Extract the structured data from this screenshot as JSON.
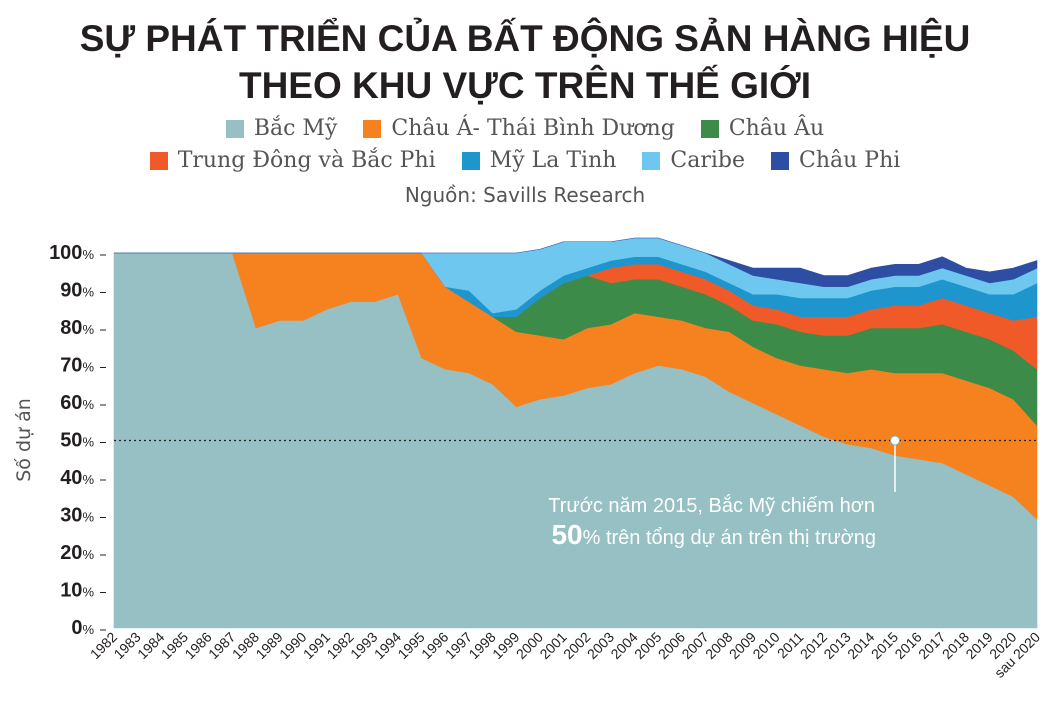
{
  "chart_data": {
    "type": "area",
    "title_lines": [
      "SỰ PHÁT TRIỂN CỦA BẤT ĐỘNG SẢN HÀNG HIỆU",
      "THEO KHU VỰC TRÊN THẾ GIỚI"
    ],
    "source": "Nguồn: Savills Research",
    "ylabel": "Số dự án",
    "ylim": [
      0,
      100
    ],
    "yticks": [
      "0%",
      "10%",
      "20%",
      "30%",
      "40%",
      "50%",
      "60%",
      "70%",
      "80%",
      "90%",
      "100%"
    ],
    "categories": [
      "1982",
      "1983",
      "1984",
      "1985",
      "1986",
      "1987",
      "1988",
      "1989",
      "1990",
      "1991",
      "1982",
      "1993",
      "1994",
      "1995",
      "1996",
      "1997",
      "1998",
      "1999",
      "2000",
      "2001",
      "2002",
      "2003",
      "2004",
      "2005",
      "2006",
      "2007",
      "2008",
      "2009",
      "2010",
      "2011",
      "2012",
      "2013",
      "2014",
      "2015",
      "2016",
      "2017",
      "2018",
      "2019",
      "2020",
      "sau 2020"
    ],
    "reference_line": 50,
    "annotation": {
      "line1": "Trước năm 2015, Bắc Mỹ chiếm hơn",
      "big": "50",
      "line2": "% trên tổng dự án trên thị trường"
    },
    "series": [
      {
        "name": "Bắc Mỹ",
        "color": "#96c0c3",
        "values": [
          100,
          100,
          100,
          100,
          100,
          100,
          80,
          82,
          82,
          85,
          87,
          87,
          89,
          72,
          69,
          68,
          65,
          59,
          61,
          62,
          64,
          65,
          68,
          70,
          69,
          67,
          63,
          60,
          57,
          54,
          51,
          49,
          48,
          46,
          45,
          44,
          41,
          38,
          35,
          29
        ]
      },
      {
        "name": "Châu Á- Thái Bình Dương",
        "color": "#f5821f",
        "values": [
          0,
          0,
          0,
          0,
          0,
          0,
          20,
          18,
          18,
          15,
          13,
          13,
          11,
          28,
          22,
          19,
          18,
          20,
          17,
          15,
          16,
          16,
          16,
          13,
          13,
          13,
          16,
          15,
          15,
          16,
          18,
          19,
          21,
          22,
          23,
          24,
          25,
          26,
          26,
          25
        ]
      },
      {
        "name": "Châu Âu",
        "color": "#3d8b48",
        "values": [
          0,
          0,
          0,
          0,
          0,
          0,
          0,
          0,
          0,
          0,
          0,
          0,
          0,
          0,
          0,
          0,
          0,
          4,
          10,
          15,
          14,
          11,
          9,
          10,
          9,
          9,
          7,
          7,
          9,
          9,
          9,
          10,
          11,
          12,
          12,
          13,
          13,
          13,
          13,
          15
        ]
      },
      {
        "name": "Trung Đông và Bắc Phi",
        "color": "#f05a28",
        "values": [
          0,
          0,
          0,
          0,
          0,
          0,
          0,
          0,
          0,
          0,
          0,
          0,
          0,
          0,
          0,
          0,
          0,
          0,
          0,
          0,
          0,
          4,
          4,
          4,
          4,
          4,
          4,
          4,
          4,
          4,
          5,
          5,
          5,
          6,
          6,
          7,
          7,
          7,
          8,
          14
        ]
      },
      {
        "name": "Mỹ La Tinh",
        "color": "#1f95cd",
        "values": [
          0,
          0,
          0,
          0,
          0,
          0,
          0,
          0,
          0,
          0,
          0,
          0,
          0,
          0,
          0,
          3,
          1,
          2,
          2,
          2,
          2,
          2,
          2,
          2,
          2,
          2,
          2,
          3,
          4,
          5,
          5,
          5,
          5,
          5,
          5,
          5,
          5,
          5,
          7,
          9
        ]
      },
      {
        "name": "Caribe",
        "color": "#6ec7ee",
        "values": [
          0,
          0,
          0,
          0,
          0,
          0,
          0,
          0,
          0,
          0,
          0,
          0,
          0,
          0,
          9,
          10,
          16,
          15,
          11,
          9,
          7,
          5,
          5,
          5,
          5,
          5,
          5,
          5,
          4,
          4,
          3,
          3,
          3,
          3,
          3,
          3,
          3,
          3,
          4,
          4
        ]
      },
      {
        "name": "Châu Phi",
        "color": "#2d4ea2",
        "values": [
          0,
          0,
          0,
          0,
          0,
          0,
          0,
          0,
          0,
          0,
          0,
          0,
          0,
          0,
          0,
          0,
          0,
          0,
          0,
          0,
          0,
          0,
          0,
          0,
          0,
          0,
          1,
          2,
          3,
          4,
          3,
          3,
          3,
          3,
          3,
          3,
          2,
          3,
          3,
          2
        ]
      }
    ]
  }
}
